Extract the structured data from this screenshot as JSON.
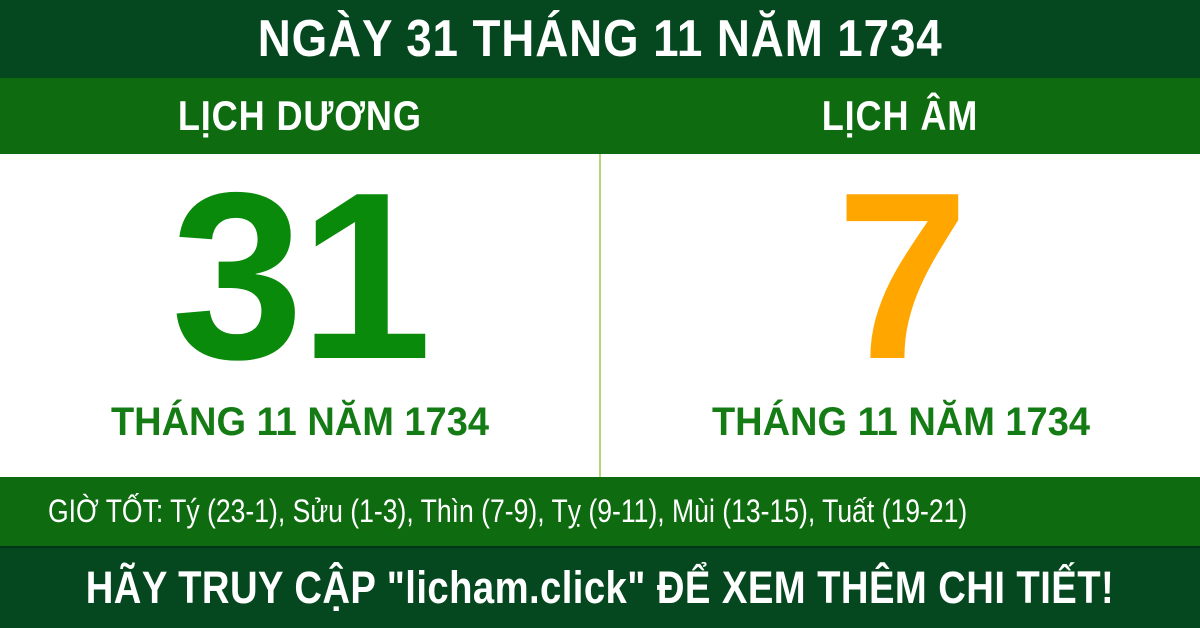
{
  "colors": {
    "header_bg": "#05481f",
    "bar_bg": "#0e6b10",
    "panel_bg": "#ffffff",
    "text_white": "#ffffff",
    "solar_day": "#0a8a0a",
    "lunar_day": "#ffa600",
    "month_text": "#157c15",
    "divider": "#b5d87a"
  },
  "header": {
    "title": "NGÀY 31 THÁNG 11 NĂM 1734"
  },
  "calendar_bar": {
    "solar_label": "LỊCH DƯƠNG",
    "lunar_label": "LỊCH ÂM"
  },
  "solar": {
    "day": "31",
    "month_year": "THÁNG 11 NĂM 1734"
  },
  "lunar": {
    "day": "7",
    "month_year": "THÁNG 11 NĂM 1734"
  },
  "good_hours": {
    "text": "GIỜ TỐT: Tý (23-1), Sửu (1-3), Thìn (7-9), Tỵ (9-11), Mùi (13-15), Tuất (19-21)"
  },
  "footer": {
    "text": "HÃY TRUY CẬP \"licham.click\" ĐỂ XEM THÊM CHI TIẾT!"
  }
}
